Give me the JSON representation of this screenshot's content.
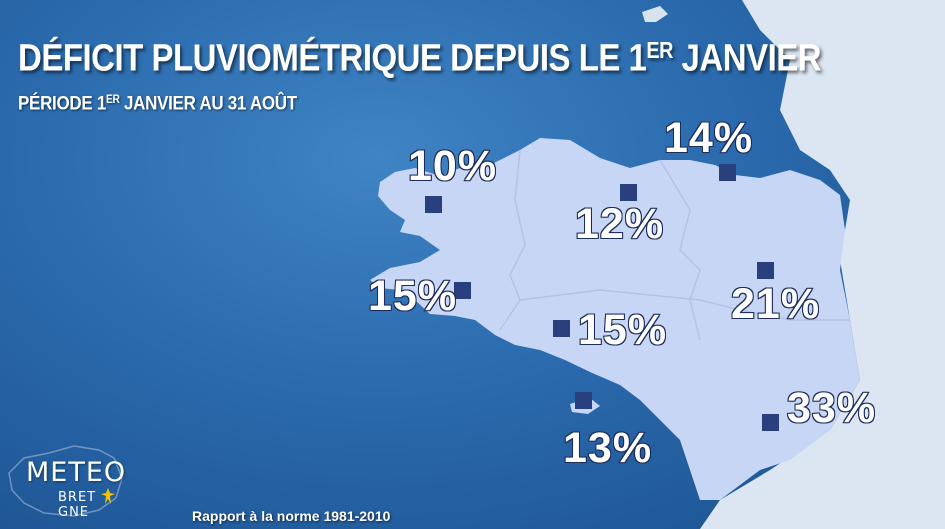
{
  "title": {
    "main": "DÉFICIT PLUVIOMÉTRIQUE DEPUIS LE 1",
    "sup": "ER",
    "tail": " JANVIER"
  },
  "subtitle": {
    "main": "PÉRIODE 1",
    "sup": "ER",
    "tail": " JANVIER AU 31 AOÛT"
  },
  "footer": "Rapport à la norme 1981-2010",
  "logo": {
    "main": "METEO",
    "sub": "BRET",
    "sub_tail": "GNE",
    "icon": "ermine-icon"
  },
  "colors": {
    "sea": "#2a6aad",
    "land_region": "#c8d6f5",
    "neighbor_land": "#dbe6f2",
    "marker": "#2a3f7e",
    "label_outline": "#1d2d5a"
  },
  "stations": [
    {
      "id": "brest-north",
      "label": "10%"
    },
    {
      "id": "morlaix",
      "label": "12%"
    },
    {
      "id": "dinard",
      "label": "14%"
    },
    {
      "id": "quimper",
      "label": "15%"
    },
    {
      "id": "lorient",
      "label": "15%"
    },
    {
      "id": "rennes",
      "label": "21%"
    },
    {
      "id": "belle-ile",
      "label": "13%"
    },
    {
      "id": "nantes",
      "label": "33%"
    }
  ]
}
